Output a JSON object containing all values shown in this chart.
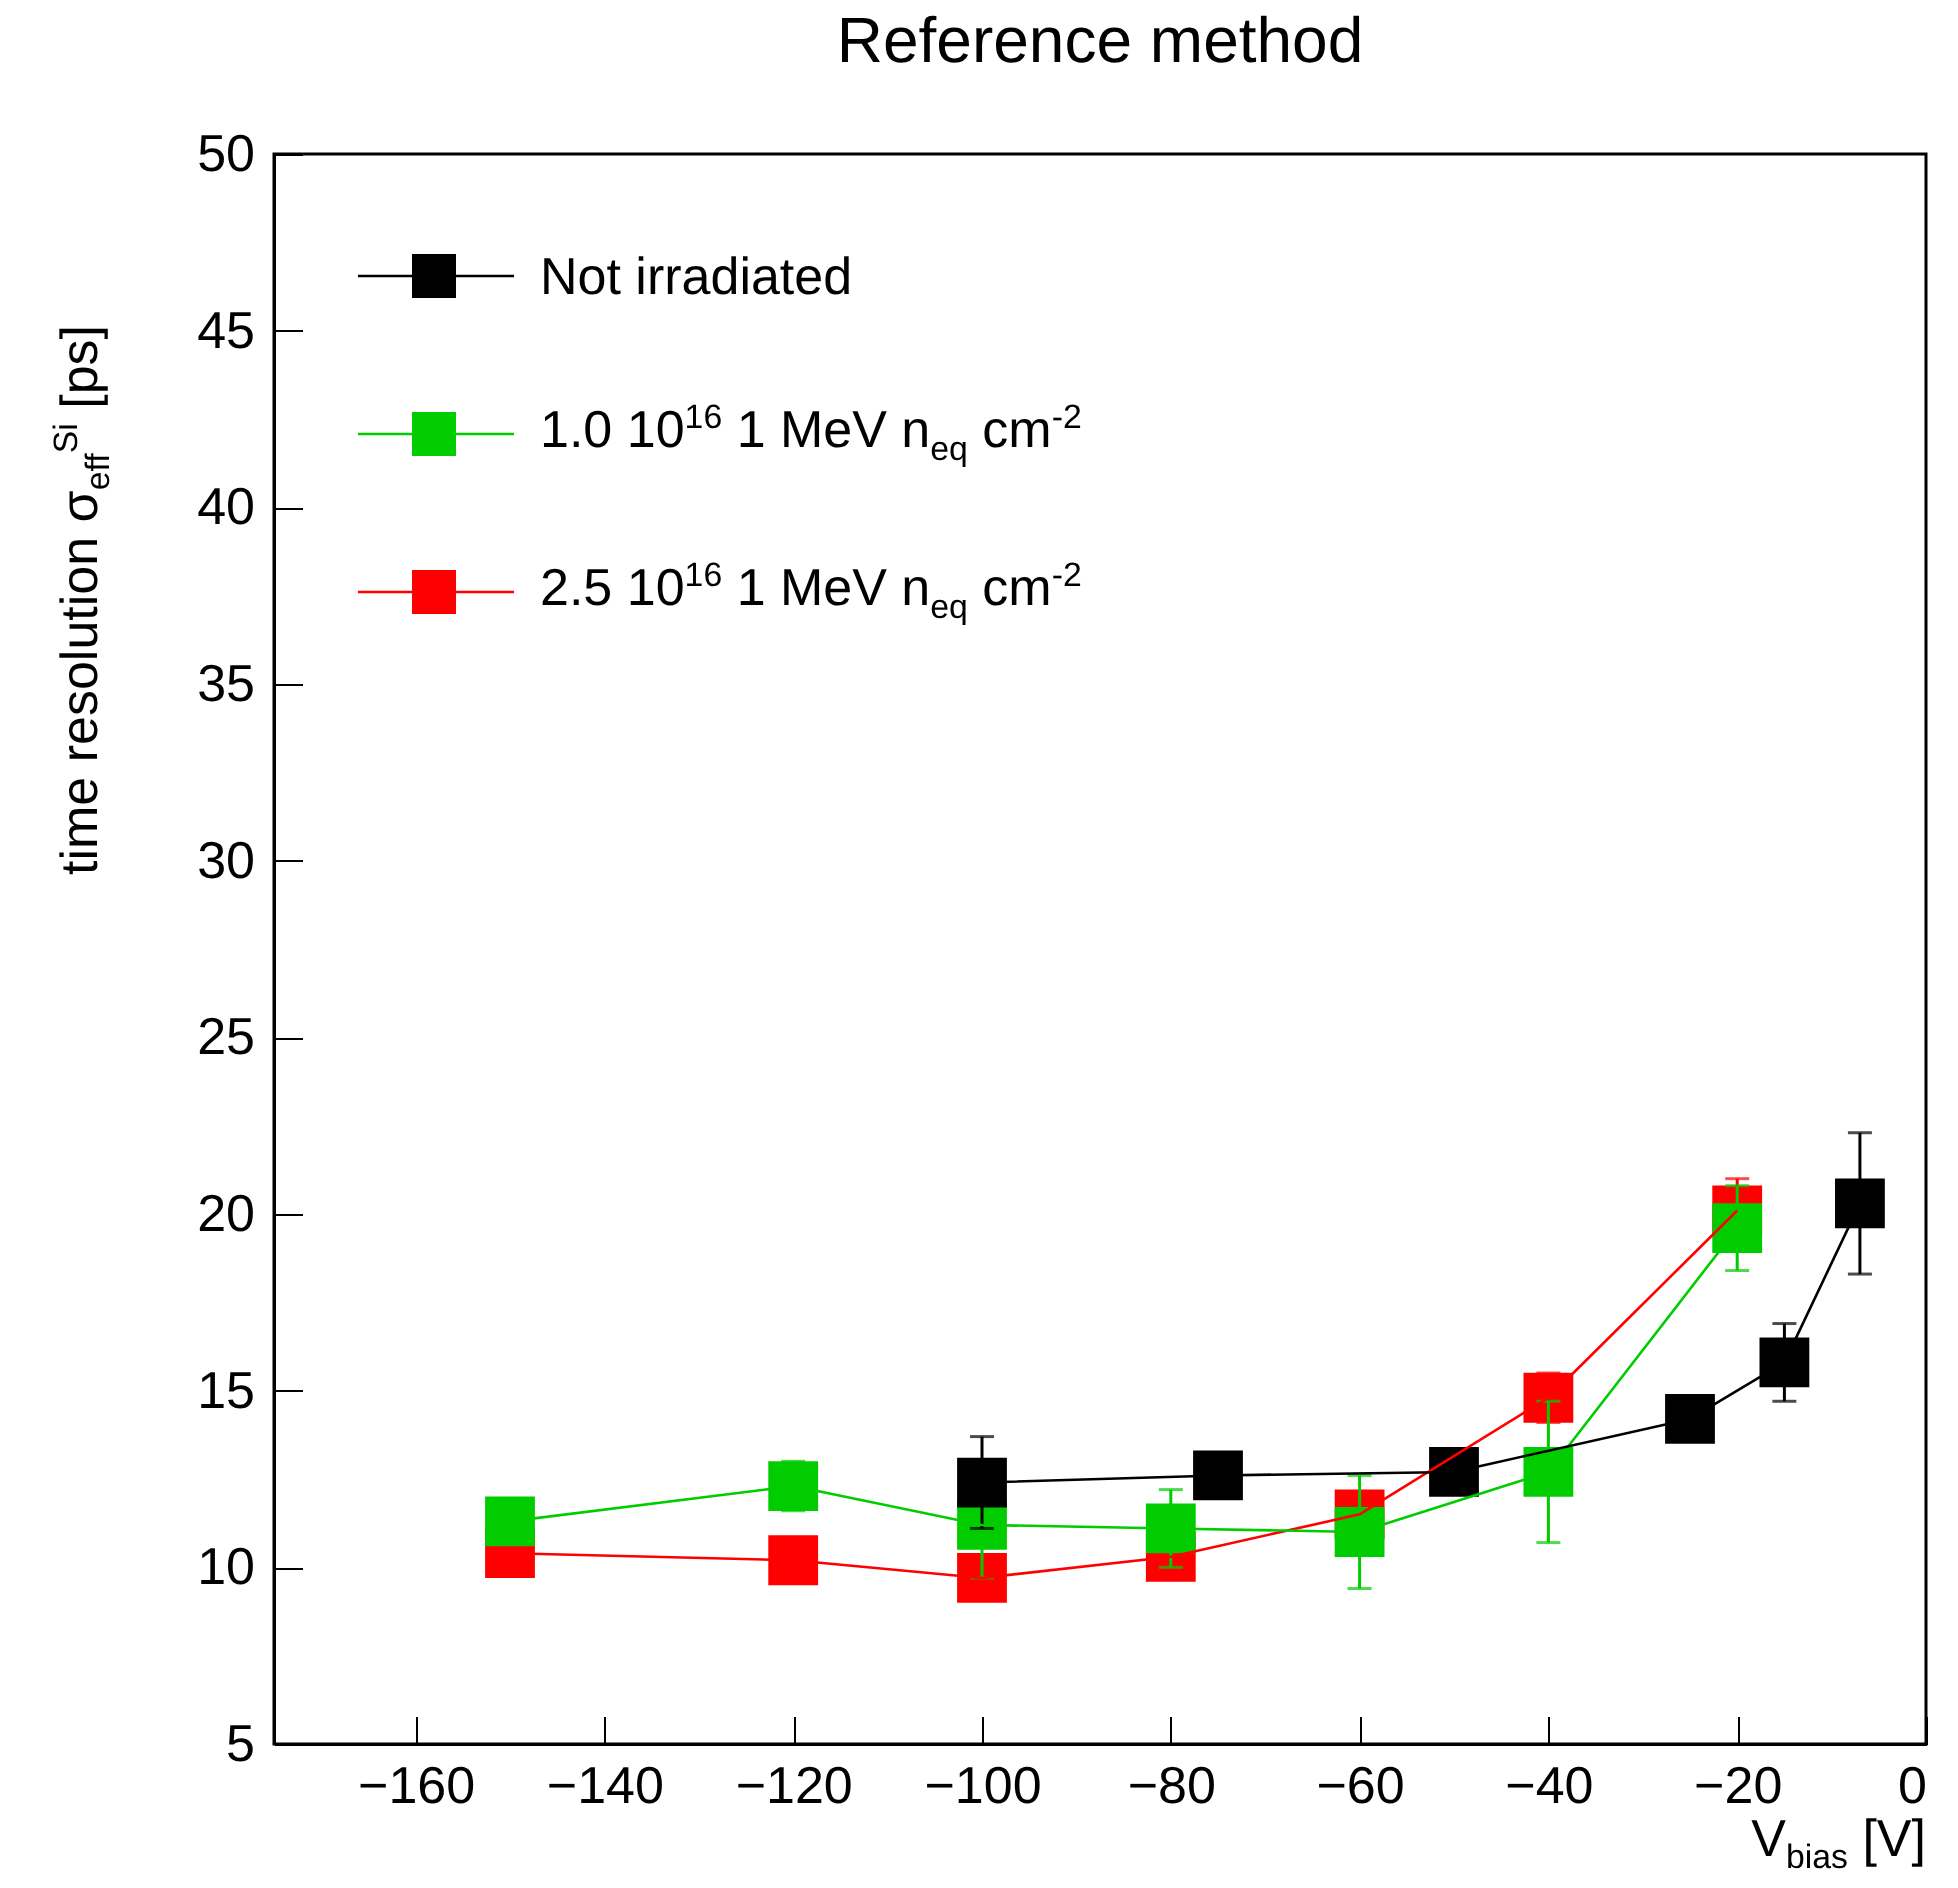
{
  "chart_data": {
    "type": "line",
    "title": "Reference method",
    "xlabel": "V$_{bias}$ [V]",
    "ylabel": "time resolution σ$_{eff}$$^{Si}$ [ps]",
    "xlim": [
      -175,
      0
    ],
    "xticks": [
      -160,
      -140,
      -120,
      -100,
      -80,
      -60,
      -40,
      -20,
      0
    ],
    "ylim": [
      5,
      50
    ],
    "yticks": [
      5,
      10,
      15,
      20,
      25,
      30,
      35,
      40,
      45,
      50
    ],
    "grid": false,
    "legend": "top left",
    "marker": "square",
    "line_style": "solid",
    "series": [
      {
        "name": "Not irradiated",
        "color": "#000000",
        "x": [
          -100,
          -75,
          -50,
          -25,
          -15,
          -7
        ],
        "values": [
          12.4,
          12.6,
          12.7,
          14.2,
          15.8,
          20.3
        ],
        "errors": [
          1.3,
          0.35,
          0.4,
          null,
          1.1,
          2.0
        ]
      },
      {
        "name": "1.0 10$^{16}$ 1 MeV n$_{eq}$ cm$^{-2}$",
        "color": "#00cc00",
        "x": [
          -150,
          -120,
          -100,
          -80,
          -60,
          -40,
          -20
        ],
        "values": [
          11.3,
          12.3,
          11.2,
          11.1,
          11.0,
          12.7,
          19.6
        ],
        "errors": [
          null,
          0.7,
          1.5,
          1.1,
          1.6,
          2.0,
          1.2
        ]
      },
      {
        "name": "2.5 10$^{16}$ 1 MeV n$_{eq}$ cm$^{-2}$",
        "color": "#ff0000",
        "x": [
          -150,
          -120,
          -100,
          -80,
          -60,
          -40,
          -20
        ],
        "values": [
          10.4,
          10.2,
          9.7,
          10.3,
          11.5,
          14.8,
          20.1
        ],
        "errors": [
          null,
          null,
          null,
          null,
          0.6,
          0.7,
          0.9
        ]
      }
    ]
  }
}
